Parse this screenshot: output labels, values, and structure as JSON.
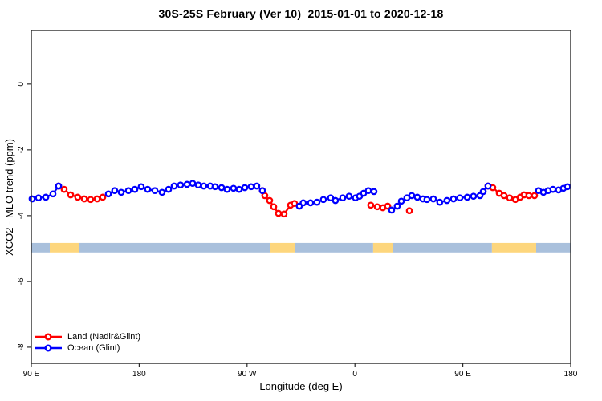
{
  "title": "30S-25S February (Ver 10)  2015-01-01 to 2020-12-18",
  "axes": {
    "x": {
      "label": "Longitude (deg E)",
      "ticks": [
        {
          "value": 90,
          "label": "90 E"
        },
        {
          "value": 180,
          "label": "180"
        },
        {
          "value": 270,
          "label": "90 W"
        },
        {
          "value": 360,
          "label": "0"
        },
        {
          "value": 450,
          "label": "90 E"
        },
        {
          "value": 540,
          "label": "180"
        }
      ]
    },
    "y": {
      "label": "XCO2 - MLO trend (ppm)",
      "ticks": [
        {
          "value": 0,
          "label": "0"
        },
        {
          "value": -2,
          "label": "-2"
        },
        {
          "value": -4,
          "label": "-4"
        },
        {
          "value": -6,
          "label": "-6"
        },
        {
          "value": -8,
          "label": "-8"
        }
      ]
    }
  },
  "legend": {
    "items": [
      {
        "label": "Land (Nadir&Glint)",
        "color": "#ff0000"
      },
      {
        "label": "Ocean (Glint)",
        "color": "#0000ff"
      }
    ]
  },
  "chart_data": {
    "type": "line",
    "title": "30S-25S February (Ver 10)  2015-01-01 to 2020-12-18",
    "xlabel": "Longitude (deg E)",
    "ylabel": "XCO2 - MLO trend (ppm)",
    "xlim": [
      90,
      540
    ],
    "ylim": [
      -8.49,
      1.63
    ],
    "grid": false,
    "legend_position": "bottom-left",
    "series": [
      {
        "name": "Land (Nadir&Glint)",
        "color": "#ff0000",
        "marker": "open-circle",
        "segments": [
          [
            [
              112.8,
              -3.1
            ],
            [
              117.4,
              -3.2
            ],
            [
              122.8,
              -3.37
            ],
            [
              128.8,
              -3.44
            ],
            [
              134.2,
              -3.49
            ],
            [
              139.5,
              -3.51
            ],
            [
              144.9,
              -3.49
            ],
            [
              149.6,
              -3.44
            ]
          ],
          [
            [
              282.8,
              -3.24
            ],
            [
              284.8,
              -3.39
            ],
            [
              288.8,
              -3.54
            ],
            [
              292.2,
              -3.73
            ],
            [
              296.2,
              -3.93
            ],
            [
              300.9,
              -3.95
            ],
            [
              306.3,
              -3.68
            ],
            [
              309.6,
              -3.63
            ]
          ],
          [
            [
              373.2,
              -3.68
            ],
            [
              378.6,
              -3.73
            ],
            [
              383.3,
              -3.76
            ],
            [
              387.3,
              -3.71
            ]
          ],
          [
            [
              405.4,
              -3.85
            ]
          ],
          [
            [
              471.0,
              -3.1
            ],
            [
              475.0,
              -3.15
            ],
            [
              480.4,
              -3.32
            ],
            [
              484.4,
              -3.39
            ],
            [
              489.1,
              -3.46
            ],
            [
              493.8,
              -3.51
            ],
            [
              497.8,
              -3.44
            ],
            [
              501.1,
              -3.37
            ],
            [
              505.1,
              -3.39
            ],
            [
              509.8,
              -3.39
            ]
          ]
        ]
      },
      {
        "name": "Ocean (Glint)",
        "color": "#0000ff",
        "marker": "open-circle",
        "segments": [
          [
            [
              90.7,
              -3.49
            ],
            [
              96.0,
              -3.46
            ],
            [
              102.1,
              -3.44
            ],
            [
              108.1,
              -3.34
            ],
            [
              112.8,
              -3.1
            ]
          ],
          [
            [
              154.3,
              -3.34
            ],
            [
              159.6,
              -3.24
            ],
            [
              165.0,
              -3.29
            ],
            [
              171.0,
              -3.24
            ],
            [
              176.4,
              -3.2
            ],
            [
              181.7,
              -3.12
            ],
            [
              187.1,
              -3.2
            ],
            [
              193.1,
              -3.24
            ],
            [
              199.1,
              -3.29
            ],
            [
              204.5,
              -3.2
            ],
            [
              209.2,
              -3.1
            ],
            [
              214.5,
              -3.07
            ],
            [
              219.9,
              -3.05
            ],
            [
              224.6,
              -3.02
            ],
            [
              229.3,
              -3.07
            ],
            [
              233.9,
              -3.1
            ],
            [
              239.3,
              -3.1
            ],
            [
              243.3,
              -3.12
            ],
            [
              248.7,
              -3.15
            ],
            [
              253.3,
              -3.2
            ],
            [
              258.7,
              -3.17
            ],
            [
              263.4,
              -3.2
            ],
            [
              268.1,
              -3.15
            ],
            [
              273.4,
              -3.12
            ],
            [
              278.1,
              -3.1
            ],
            [
              282.8,
              -3.24
            ]
          ],
          [
            [
              313.6,
              -3.71
            ],
            [
              316.9,
              -3.61
            ],
            [
              323.0,
              -3.61
            ],
            [
              328.3,
              -3.59
            ],
            [
              333.7,
              -3.51
            ],
            [
              339.7,
              -3.46
            ],
            [
              343.7,
              -3.54
            ],
            [
              349.8,
              -3.46
            ],
            [
              355.1,
              -3.41
            ],
            [
              360.5,
              -3.46
            ],
            [
              363.8,
              -3.41
            ],
            [
              367.2,
              -3.32
            ],
            [
              371.2,
              -3.24
            ],
            [
              375.9,
              -3.27
            ]
          ],
          [
            [
              390.6,
              -3.83
            ],
            [
              395.3,
              -3.71
            ],
            [
              398.7,
              -3.56
            ],
            [
              403.3,
              -3.46
            ],
            [
              407.4,
              -3.39
            ],
            [
              412.0,
              -3.44
            ],
            [
              416.7,
              -3.49
            ],
            [
              420.1,
              -3.51
            ],
            [
              425.4,
              -3.49
            ],
            [
              430.8,
              -3.59
            ],
            [
              436.8,
              -3.54
            ],
            [
              442.2,
              -3.49
            ],
            [
              447.5,
              -3.46
            ],
            [
              453.6,
              -3.44
            ],
            [
              458.9,
              -3.41
            ],
            [
              464.3,
              -3.39
            ],
            [
              467.0,
              -3.27
            ],
            [
              471.0,
              -3.1
            ]
          ],
          [
            [
              513.2,
              -3.24
            ],
            [
              517.2,
              -3.29
            ],
            [
              521.2,
              -3.24
            ],
            [
              525.2,
              -3.2
            ],
            [
              529.9,
              -3.22
            ],
            [
              533.9,
              -3.17
            ],
            [
              537.3,
              -3.12
            ]
          ]
        ]
      }
    ],
    "band": {
      "description": "land/ocean longitude strip",
      "y_top": -4.83,
      "y_bottom": -5.12,
      "colors": {
        "ocean": "#a9c0dc",
        "land": "#fdd67d"
      },
      "segments": [
        {
          "type": "ocean",
          "from": 90,
          "to": 105.4
        },
        {
          "type": "land",
          "from": 105.4,
          "to": 129.5
        },
        {
          "type": "ocean",
          "from": 129.5,
          "to": 289.5
        },
        {
          "type": "land",
          "from": 289.5,
          "to": 310.3
        },
        {
          "type": "ocean",
          "from": 310.3,
          "to": 375.2
        },
        {
          "type": "land",
          "from": 375.2,
          "to": 392.0
        },
        {
          "type": "ocean",
          "from": 392.0,
          "to": 474.3
        },
        {
          "type": "land",
          "from": 474.3,
          "to": 511.2
        },
        {
          "type": "ocean",
          "from": 511.2,
          "to": 540
        }
      ]
    }
  }
}
